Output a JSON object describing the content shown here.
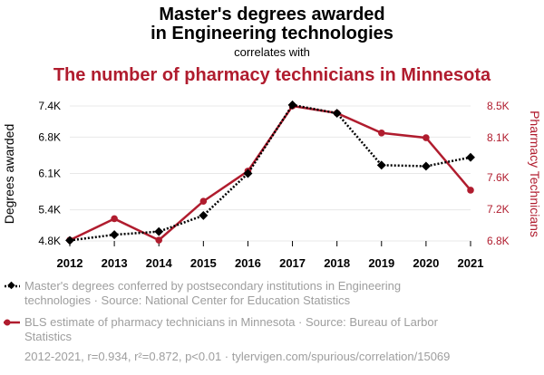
{
  "chart_data": {
    "type": "line",
    "title_lines": [
      "Master's degrees awarded",
      "in Engineering technologies"
    ],
    "connector": "correlates with",
    "title2": "The number of pharmacy technicians in Minnesota",
    "x": [
      2012,
      2013,
      2014,
      2015,
      2016,
      2017,
      2018,
      2019,
      2020,
      2021
    ],
    "y_left": {
      "label": "Degrees awarded",
      "range": [
        4800,
        7400
      ],
      "ticks": [
        4800,
        5400,
        6100,
        6800,
        7400
      ],
      "tick_labels": [
        "4.8K",
        "5.4K",
        "6.1K",
        "6.8K",
        "7.4K"
      ]
    },
    "y_right": {
      "label": "Pharmacy Technicians",
      "range": [
        6800,
        8500
      ],
      "ticks": [
        6800,
        7200,
        7600,
        8100,
        8500
      ],
      "tick_labels": [
        "6.8K",
        "7.2K",
        "7.6K",
        "8.1K",
        "8.5K"
      ]
    },
    "series": [
      {
        "axis": "left",
        "color": "#000000",
        "style": "dotted-diamond",
        "values": [
          4810,
          4920,
          4980,
          5290,
          6100,
          7420,
          7260,
          6260,
          6240,
          6410
        ],
        "legend_lines": [
          "Master's degrees conferred by postsecondary institutions in Engineering",
          "technologies · Source: National Center for Education Statistics"
        ]
      },
      {
        "axis": "right",
        "color": "#b01c2e",
        "style": "solid-circle",
        "values": [
          6810,
          7080,
          6810,
          7300,
          7680,
          8500,
          8410,
          8160,
          8100,
          7440
        ],
        "legend_lines": [
          "BLS estimate of pharmacy technicians in Minnesota · Source: Bureau of Larbor",
          "Statistics"
        ]
      }
    ],
    "grid": true,
    "footer": "2012-2021, r=0.934, r²=0.872, p<0.01 · tylervigen.com/spurious/correlation/15069"
  }
}
